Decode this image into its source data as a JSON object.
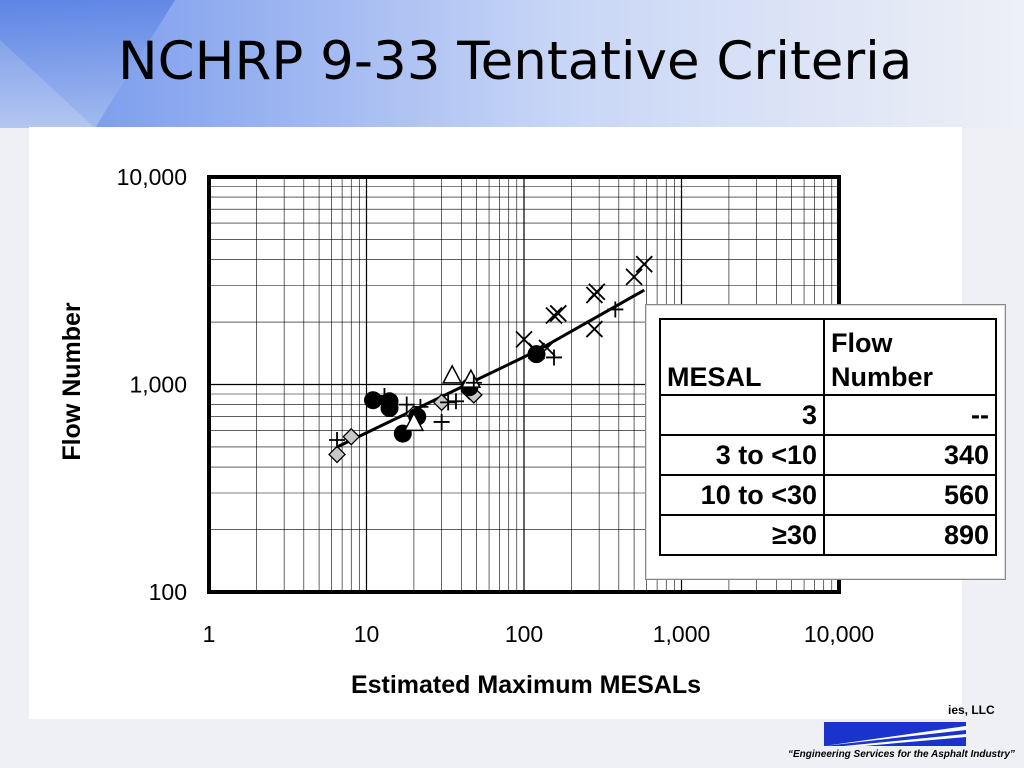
{
  "slide": {
    "title": "NCHRP 9-33 Tentative Criteria",
    "footer_company_fragment": "ies, LLC",
    "footer_tagline": "“Engineering Services for the Asphalt Industry”"
  },
  "colors": {
    "background": "#eef0f6",
    "title_band": "#5f86e6",
    "chart_panel": "#ffffff",
    "logo_blue": "#1a33cc"
  },
  "chart_data": {
    "type": "scatter",
    "title": "",
    "xlabel": "Estimated Maximum MESALs",
    "ylabel": "Flow Number",
    "xscale": "log",
    "yscale": "log",
    "xlim": [
      1,
      10000
    ],
    "ylim": [
      100,
      10000
    ],
    "x_tick_labels": [
      "1",
      "10",
      "100",
      "1,000",
      "10,000"
    ],
    "x_tick_values": [
      1,
      10,
      100,
      1000,
      10000
    ],
    "y_tick_labels": [
      "100",
      "1,000",
      "10,000"
    ],
    "y_tick_values": [
      100,
      1000,
      10000
    ],
    "grid": true,
    "series": [
      {
        "marker": "diamond",
        "points": [
          [
            6.5,
            460
          ],
          [
            8.0,
            560
          ],
          [
            20,
            720
          ],
          [
            30,
            820
          ],
          [
            45,
            930
          ],
          [
            48,
            890
          ]
        ]
      },
      {
        "marker": "filled-circle",
        "points": [
          [
            11,
            840
          ],
          [
            14,
            830
          ],
          [
            14,
            770
          ],
          [
            17,
            580
          ],
          [
            21,
            700
          ],
          [
            45,
            970
          ],
          [
            120,
            1400
          ]
        ]
      },
      {
        "marker": "triangle",
        "points": [
          [
            20,
            650
          ],
          [
            35,
            1100
          ],
          [
            46,
            1050
          ]
        ]
      },
      {
        "marker": "plus",
        "points": [
          [
            6.5,
            540
          ],
          [
            13,
            880
          ],
          [
            18,
            800
          ],
          [
            22,
            780
          ],
          [
            30,
            660
          ],
          [
            33,
            820
          ],
          [
            37,
            830
          ],
          [
            48,
            1020
          ],
          [
            155,
            1350
          ],
          [
            380,
            2300
          ]
        ]
      },
      {
        "marker": "x",
        "points": [
          [
            100,
            1650
          ],
          [
            120,
            1450
          ],
          [
            140,
            1500
          ],
          [
            155,
            2150
          ],
          [
            165,
            2200
          ],
          [
            280,
            1850
          ],
          [
            280,
            2700
          ],
          [
            290,
            2800
          ],
          [
            500,
            3300
          ],
          [
            580,
            3800
          ]
        ]
      }
    ],
    "trend_line": {
      "points": [
        [
          6.5,
          500
        ],
        [
          120,
          1450
        ],
        [
          580,
          2850
        ]
      ]
    }
  },
  "criteria_table": {
    "headers": [
      "MESAL",
      "Flow\nNumber"
    ],
    "rows": [
      [
        "3",
        "--"
      ],
      [
        "3 to <10",
        "340"
      ],
      [
        "10 to <30",
        "560"
      ],
      [
        "≥30",
        "890"
      ]
    ]
  }
}
